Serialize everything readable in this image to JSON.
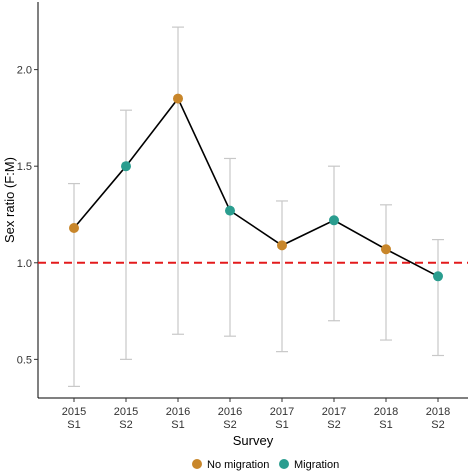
{
  "chart_data": {
    "type": "scatter",
    "xlabel": "Survey",
    "ylabel": "Sex ratio (F:M)",
    "ylim": [
      0.3,
      2.35
    ],
    "yticks": [
      0.5,
      1.0,
      1.5,
      2.0
    ],
    "ytick_labels": [
      "0.5",
      "1.0",
      "1.5",
      "2.0"
    ],
    "categories": [
      {
        "year": "2015",
        "season": "S1"
      },
      {
        "year": "2015",
        "season": "S2"
      },
      {
        "year": "2016",
        "season": "S1"
      },
      {
        "year": "2016",
        "season": "S2"
      },
      {
        "year": "2017",
        "season": "S1"
      },
      {
        "year": "2017",
        "season": "S2"
      },
      {
        "year": "2018",
        "season": "S1"
      },
      {
        "year": "2018",
        "season": "S2"
      }
    ],
    "points": [
      {
        "value": 1.18,
        "lower": 0.36,
        "upper": 1.41,
        "group": "No migration"
      },
      {
        "value": 1.5,
        "lower": 0.5,
        "upper": 1.79,
        "group": "Migration"
      },
      {
        "value": 1.85,
        "lower": 0.63,
        "upper": 2.22,
        "group": "No migration"
      },
      {
        "value": 1.27,
        "lower": 0.62,
        "upper": 1.54,
        "group": "Migration"
      },
      {
        "value": 1.09,
        "lower": 0.54,
        "upper": 1.32,
        "group": "No migration"
      },
      {
        "value": 1.22,
        "lower": 0.7,
        "upper": 1.5,
        "group": "Migration"
      },
      {
        "value": 1.07,
        "lower": 0.6,
        "upper": 1.3,
        "group": "No migration"
      },
      {
        "value": 0.93,
        "lower": 0.52,
        "upper": 1.12,
        "group": "Migration"
      }
    ],
    "reference_line": {
      "value": 1.0,
      "color": "#e31a1c",
      "style": "dashed"
    },
    "legend": [
      {
        "label": "No migration",
        "color": "#c8862a"
      },
      {
        "label": "Migration",
        "color": "#2a9d8f"
      }
    ],
    "legend_position": "bottom",
    "grid": false,
    "line_color": "#000000",
    "errorbar_color": "#c8c8c8"
  }
}
